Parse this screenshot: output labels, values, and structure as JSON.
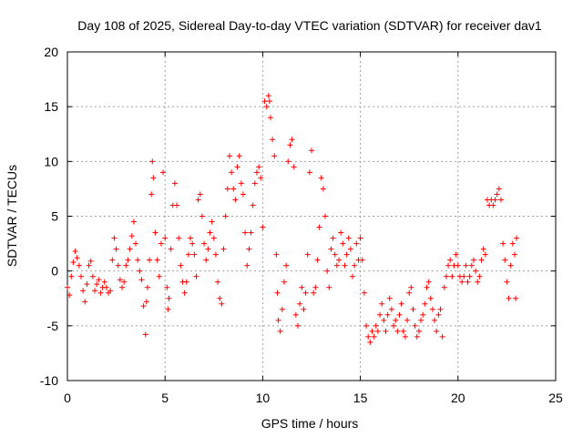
{
  "chart_data": {
    "type": "scatter",
    "title": "Day 108 of 2025, Sidereal Day-to-day VTEC variation (SDTVAR) for receiver dav1",
    "xlabel": "GPS time / hours",
    "ylabel": "SDTVAR / TECUs",
    "xlim": [
      0,
      25
    ],
    "ylim": [
      -10,
      20
    ],
    "grid": true,
    "x_ticks": [
      0,
      5,
      10,
      15,
      20,
      25
    ],
    "y_ticks": [
      -10,
      -5,
      0,
      5,
      10,
      15,
      20
    ],
    "x_tick_labels": [
      "0",
      "5",
      "10",
      "15",
      "20",
      "25"
    ],
    "y_tick_labels": [
      "-10",
      "-5",
      "0",
      "5",
      "10",
      "15",
      "20"
    ],
    "marker": "+",
    "series_color": "#ff0000",
    "series": [
      {
        "name": "dav1",
        "points": [
          [
            0.0,
            -1.5
          ],
          [
            0.1,
            -2.2
          ],
          [
            0.2,
            -0.5
          ],
          [
            0.3,
            0.8
          ],
          [
            0.4,
            1.8
          ],
          [
            0.5,
            1.2
          ],
          [
            0.6,
            0.5
          ],
          [
            0.7,
            -0.5
          ],
          [
            0.8,
            -1.8
          ],
          [
            0.9,
            -2.8
          ],
          [
            1.0,
            -1.2
          ],
          [
            1.1,
            0.5
          ],
          [
            1.2,
            0.9
          ],
          [
            1.3,
            -0.5
          ],
          [
            1.4,
            -1.8
          ],
          [
            1.5,
            -1.2
          ],
          [
            1.6,
            -0.8
          ],
          [
            1.7,
            -2.0
          ],
          [
            1.8,
            -1.5
          ],
          [
            1.9,
            -1.0
          ],
          [
            2.0,
            -1.5
          ],
          [
            2.1,
            -2.0
          ],
          [
            2.2,
            -1.8
          ],
          [
            2.3,
            1.0
          ],
          [
            2.4,
            3.0
          ],
          [
            2.5,
            2.0
          ],
          [
            2.6,
            0.5
          ],
          [
            2.7,
            -0.8
          ],
          [
            2.8,
            -1.5
          ],
          [
            2.9,
            -1.0
          ],
          [
            3.0,
            0.5
          ],
          [
            3.1,
            1.0
          ],
          [
            3.2,
            2.0
          ],
          [
            3.3,
            3.2
          ],
          [
            3.4,
            4.5
          ],
          [
            3.5,
            2.5
          ],
          [
            3.6,
            1.0
          ],
          [
            3.7,
            0.0
          ],
          [
            3.8,
            -0.8
          ],
          [
            3.9,
            -3.2
          ],
          [
            4.0,
            -5.8
          ],
          [
            4.05,
            -2.8
          ],
          [
            4.1,
            -1.5
          ],
          [
            4.2,
            1.0
          ],
          [
            4.3,
            7.0
          ],
          [
            4.35,
            10.0
          ],
          [
            4.4,
            8.5
          ],
          [
            4.5,
            3.5
          ],
          [
            4.6,
            1.0
          ],
          [
            4.7,
            -0.5
          ],
          [
            4.8,
            2.5
          ],
          [
            4.9,
            9.0
          ],
          [
            5.0,
            3.0
          ],
          [
            5.1,
            -1.5
          ],
          [
            5.15,
            -3.5
          ],
          [
            5.2,
            -2.5
          ],
          [
            5.3,
            2.0
          ],
          [
            5.4,
            6.0
          ],
          [
            5.5,
            8.0
          ],
          [
            5.6,
            6.0
          ],
          [
            5.7,
            3.0
          ],
          [
            5.8,
            0.5
          ],
          [
            5.9,
            -1.0
          ],
          [
            6.0,
            -2.0
          ],
          [
            6.1,
            -1.0
          ],
          [
            6.2,
            1.5
          ],
          [
            6.3,
            3.0
          ],
          [
            6.4,
            2.5
          ],
          [
            6.5,
            1.5
          ],
          [
            6.6,
            -0.5
          ],
          [
            6.7,
            6.5
          ],
          [
            6.8,
            7.0
          ],
          [
            6.9,
            5.0
          ],
          [
            7.0,
            2.5
          ],
          [
            7.1,
            1.0
          ],
          [
            7.2,
            2.0
          ],
          [
            7.3,
            3.5
          ],
          [
            7.4,
            4.5
          ],
          [
            7.5,
            3.0
          ],
          [
            7.6,
            1.5
          ],
          [
            7.7,
            -1.0
          ],
          [
            7.8,
            -2.5
          ],
          [
            7.9,
            -3.0
          ],
          [
            8.0,
            2.0
          ],
          [
            8.1,
            5.0
          ],
          [
            8.2,
            7.5
          ],
          [
            8.3,
            10.5
          ],
          [
            8.4,
            9.0
          ],
          [
            8.5,
            7.5
          ],
          [
            8.6,
            6.5
          ],
          [
            8.7,
            9.5
          ],
          [
            8.8,
            10.5
          ],
          [
            8.9,
            8.0
          ],
          [
            9.0,
            7.0
          ],
          [
            9.1,
            3.5
          ],
          [
            9.2,
            0.5
          ],
          [
            9.3,
            2.0
          ],
          [
            9.4,
            3.5
          ],
          [
            9.5,
            6.0
          ],
          [
            9.6,
            8.0
          ],
          [
            9.7,
            9.0
          ],
          [
            9.8,
            9.5
          ],
          [
            9.9,
            8.5
          ],
          [
            10.0,
            4.0
          ],
          [
            10.1,
            15.5
          ],
          [
            10.2,
            15.0
          ],
          [
            10.3,
            16.0
          ],
          [
            10.35,
            15.5
          ],
          [
            10.4,
            14.0
          ],
          [
            10.5,
            12.0
          ],
          [
            10.6,
            10.5
          ],
          [
            10.7,
            1.5
          ],
          [
            10.75,
            -2.0
          ],
          [
            10.8,
            -4.5
          ],
          [
            10.9,
            -5.5
          ],
          [
            11.0,
            -3.5
          ],
          [
            11.1,
            -1.0
          ],
          [
            11.2,
            0.5
          ],
          [
            11.3,
            10.0
          ],
          [
            11.4,
            11.5
          ],
          [
            11.5,
            12.0
          ],
          [
            11.6,
            9.5
          ],
          [
            11.7,
            -4.0
          ],
          [
            11.8,
            -5.0
          ],
          [
            11.9,
            -3.0
          ],
          [
            12.0,
            -1.5
          ],
          [
            12.1,
            -3.5
          ],
          [
            12.2,
            -2.0
          ],
          [
            12.3,
            1.5
          ],
          [
            12.4,
            9.0
          ],
          [
            12.5,
            11.0
          ],
          [
            12.6,
            -2.0
          ],
          [
            12.7,
            -1.5
          ],
          [
            12.8,
            1.0
          ],
          [
            12.9,
            4.0
          ],
          [
            13.0,
            8.5
          ],
          [
            13.1,
            7.5
          ],
          [
            13.2,
            5.0
          ],
          [
            13.3,
            0.0
          ],
          [
            13.4,
            -1.5
          ],
          [
            13.5,
            2.0
          ],
          [
            13.6,
            3.0
          ],
          [
            13.7,
            1.5
          ],
          [
            13.8,
            0.5
          ],
          [
            13.9,
            1.0
          ],
          [
            14.0,
            3.5
          ],
          [
            14.1,
            2.5
          ],
          [
            14.2,
            0.5
          ],
          [
            14.3,
            1.5
          ],
          [
            14.4,
            3.0
          ],
          [
            14.5,
            2.0
          ],
          [
            14.6,
            -0.5
          ],
          [
            14.7,
            0.5
          ],
          [
            14.8,
            2.5
          ],
          [
            14.9,
            1.0
          ],
          [
            15.0,
            3.0
          ],
          [
            15.1,
            1.0
          ],
          [
            15.2,
            -2.0
          ],
          [
            15.3,
            -5.0
          ],
          [
            15.4,
            -6.0
          ],
          [
            15.5,
            -6.5
          ],
          [
            15.6,
            -5.5
          ],
          [
            15.7,
            -6.0
          ],
          [
            15.8,
            -5.0
          ],
          [
            15.9,
            -5.5
          ],
          [
            16.0,
            -4.0
          ],
          [
            16.1,
            -3.0
          ],
          [
            16.2,
            -4.5
          ],
          [
            16.3,
            -5.5
          ],
          [
            16.4,
            -4.0
          ],
          [
            16.5,
            -2.5
          ],
          [
            16.6,
            -3.5
          ],
          [
            16.7,
            -5.0
          ],
          [
            16.8,
            -4.5
          ],
          [
            16.9,
            -5.5
          ],
          [
            17.0,
            -4.0
          ],
          [
            17.1,
            -3.0
          ],
          [
            17.2,
            -5.5
          ],
          [
            17.3,
            -6.0
          ],
          [
            17.4,
            -4.5
          ],
          [
            17.5,
            -2.0
          ],
          [
            17.6,
            -1.5
          ],
          [
            17.7,
            -3.5
          ],
          [
            17.8,
            -5.0
          ],
          [
            17.9,
            -6.0
          ],
          [
            18.0,
            -5.5
          ],
          [
            18.1,
            -4.5
          ],
          [
            18.2,
            -4.0
          ],
          [
            18.3,
            -3.0
          ],
          [
            18.4,
            -1.5
          ],
          [
            18.5,
            -1.0
          ],
          [
            18.6,
            -2.5
          ],
          [
            18.7,
            -3.5
          ],
          [
            18.8,
            -4.5
          ],
          [
            18.9,
            -5.5
          ],
          [
            19.0,
            -4.0
          ],
          [
            19.1,
            -3.5
          ],
          [
            19.2,
            -6.0
          ],
          [
            19.3,
            -1.5
          ],
          [
            19.4,
            -0.5
          ],
          [
            19.5,
            0.5
          ],
          [
            19.6,
            1.0
          ],
          [
            19.7,
            -0.5
          ],
          [
            19.8,
            0.5
          ],
          [
            19.9,
            1.5
          ],
          [
            20.0,
            0.5
          ],
          [
            20.1,
            -0.5
          ],
          [
            20.2,
            -1.0
          ],
          [
            20.3,
            -0.5
          ],
          [
            20.4,
            0.5
          ],
          [
            20.5,
            -1.0
          ],
          [
            20.6,
            -0.5
          ],
          [
            20.7,
            0.5
          ],
          [
            20.8,
            1.0
          ],
          [
            20.9,
            0.0
          ],
          [
            21.0,
            -1.0
          ],
          [
            21.1,
            -0.5
          ],
          [
            21.2,
            1.0
          ],
          [
            21.3,
            2.0
          ],
          [
            21.4,
            1.5
          ],
          [
            21.5,
            6.5
          ],
          [
            21.6,
            6.0
          ],
          [
            21.7,
            6.5
          ],
          [
            21.8,
            6.0
          ],
          [
            21.9,
            6.5
          ],
          [
            22.0,
            7.0
          ],
          [
            22.1,
            7.5
          ],
          [
            22.2,
            6.5
          ],
          [
            22.3,
            2.5
          ],
          [
            22.4,
            1.0
          ],
          [
            22.5,
            -1.0
          ],
          [
            22.6,
            -2.5
          ],
          [
            22.7,
            0.5
          ],
          [
            22.8,
            2.5
          ],
          [
            22.9,
            1.5
          ],
          [
            23.0,
            3.0
          ],
          [
            22.95,
            -2.5
          ]
        ]
      }
    ]
  }
}
